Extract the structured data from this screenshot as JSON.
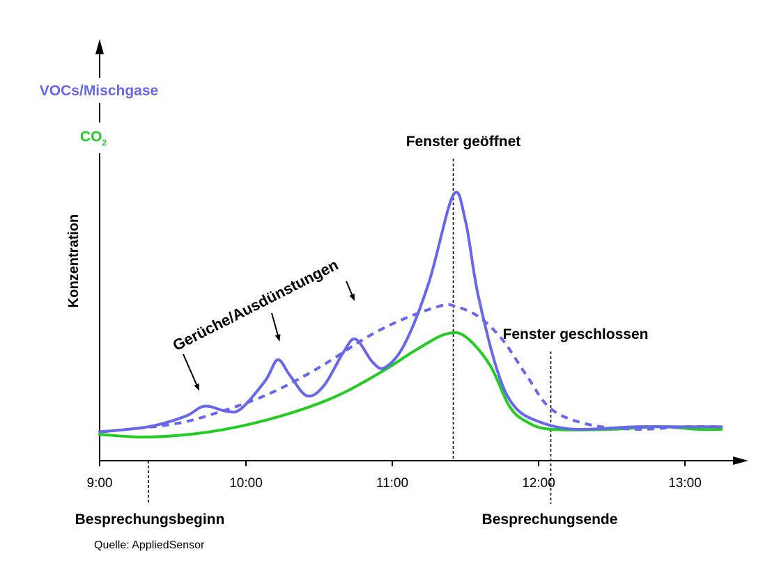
{
  "chart_data": {
    "type": "line",
    "title": "",
    "xlabel": "",
    "ylabel": "Konzentration",
    "xlim": [
      "9:00",
      "13:15"
    ],
    "ticks": [
      "9:00",
      "10:00",
      "11:00",
      "12:00",
      "13:00"
    ],
    "legend": [
      {
        "text": "VOCs/Mischgase",
        "color": "#6666ee"
      },
      {
        "text": "CO",
        "sub": "2",
        "color": "#22cc22"
      }
    ],
    "colors": {
      "voc": "#6666ee",
      "co2": "#22cc22"
    },
    "series": [
      {
        "name": "VOCs/Mischgase",
        "style": "solid",
        "color": "#6666ee",
        "points": [
          [
            "9:00",
            0.02
          ],
          [
            "9:20",
            0.04
          ],
          [
            "9:35",
            0.08
          ],
          [
            "9:43",
            0.12
          ],
          [
            "9:52",
            0.1
          ],
          [
            "9:58",
            0.11
          ],
          [
            "10:08",
            0.22
          ],
          [
            "10:13",
            0.3
          ],
          [
            "10:18",
            0.24
          ],
          [
            "10:25",
            0.16
          ],
          [
            "10:32",
            0.2
          ],
          [
            "10:40",
            0.33
          ],
          [
            "10:45",
            0.38
          ],
          [
            "10:52",
            0.29
          ],
          [
            "10:57",
            0.27
          ],
          [
            "11:05",
            0.36
          ],
          [
            "11:15",
            0.6
          ],
          [
            "11:25",
            0.94
          ],
          [
            "11:30",
            0.84
          ],
          [
            "11:35",
            0.56
          ],
          [
            "11:43",
            0.26
          ],
          [
            "11:50",
            0.12
          ],
          [
            "12:00",
            0.06
          ],
          [
            "12:15",
            0.03
          ],
          [
            "12:40",
            0.04
          ],
          [
            "13:00",
            0.04
          ],
          [
            "13:15",
            0.04
          ]
        ]
      },
      {
        "name": "VOCs/Mischgase",
        "style": "dashed",
        "color": "#6666ee",
        "points": [
          [
            "9:00",
            0.02
          ],
          [
            "9:30",
            0.05
          ],
          [
            "9:50",
            0.1
          ],
          [
            "10:10",
            0.17
          ],
          [
            "10:30",
            0.27
          ],
          [
            "10:50",
            0.39
          ],
          [
            "11:05",
            0.46
          ],
          [
            "11:20",
            0.51
          ],
          [
            "11:25",
            0.51
          ],
          [
            "11:35",
            0.47
          ],
          [
            "11:45",
            0.38
          ],
          [
            "11:55",
            0.24
          ],
          [
            "12:05",
            0.11
          ],
          [
            "12:20",
            0.05
          ],
          [
            "12:40",
            0.03
          ],
          [
            "13:00",
            0.04
          ],
          [
            "13:15",
            0.04
          ]
        ]
      },
      {
        "name": "CO2",
        "style": "solid",
        "color": "#22cc22",
        "points": [
          [
            "9:00",
            0.01
          ],
          [
            "9:20",
            0.0
          ],
          [
            "9:45",
            0.02
          ],
          [
            "10:10",
            0.07
          ],
          [
            "10:35",
            0.15
          ],
          [
            "10:55",
            0.25
          ],
          [
            "11:10",
            0.34
          ],
          [
            "11:22",
            0.4
          ],
          [
            "11:30",
            0.39
          ],
          [
            "11:40",
            0.28
          ],
          [
            "11:48",
            0.12
          ],
          [
            "11:55",
            0.06
          ],
          [
            "12:05",
            0.03
          ],
          [
            "12:30",
            0.03
          ],
          [
            "12:50",
            0.04
          ],
          [
            "13:05",
            0.03
          ],
          [
            "13:15",
            0.03
          ]
        ]
      }
    ],
    "markers": [
      {
        "time": "9:20",
        "label": "Besprechungsbeginn"
      },
      {
        "time": "11:25",
        "label": "Fenster geöffnet"
      },
      {
        "time": "12:05",
        "label": "Fenster geschlossen",
        "bottom_label": "Besprechungsende"
      }
    ],
    "annotation": "Gerüche/Ausdünstungen",
    "source": "Quelle: AppliedSensor"
  }
}
